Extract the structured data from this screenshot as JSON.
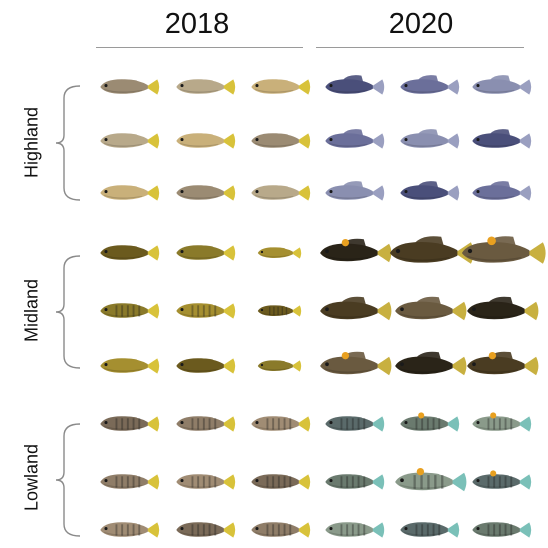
{
  "columns": [
    {
      "label": "2018"
    },
    {
      "label": "2020"
    }
  ],
  "regions": [
    {
      "label": "Highland"
    },
    {
      "label": "Midland"
    },
    {
      "label": "Lowland"
    }
  ],
  "colors": {
    "highland_2018": [
      "#9b8b73",
      "#b8a98a",
      "#c9b07a"
    ],
    "highland_2020": [
      "#4a4f7a",
      "#6b6f9a",
      "#8a8fb0"
    ],
    "midland_2018": [
      "#6b5a1e",
      "#8a7a2a",
      "#a58f30"
    ],
    "midland_2020": [
      "#2a2418",
      "#4a3c22",
      "#6a5a40"
    ],
    "lowland_2018": [
      "#7a6a58",
      "#8f7d68",
      "#a08c74"
    ],
    "lowland_2020": [
      "#5a6a6a",
      "#6a7a6e",
      "#8a9a8a"
    ],
    "tail_yellow": "#d8c23a",
    "tail_teal": "#7ac0b8",
    "spot_orange": "#e8a020"
  }
}
